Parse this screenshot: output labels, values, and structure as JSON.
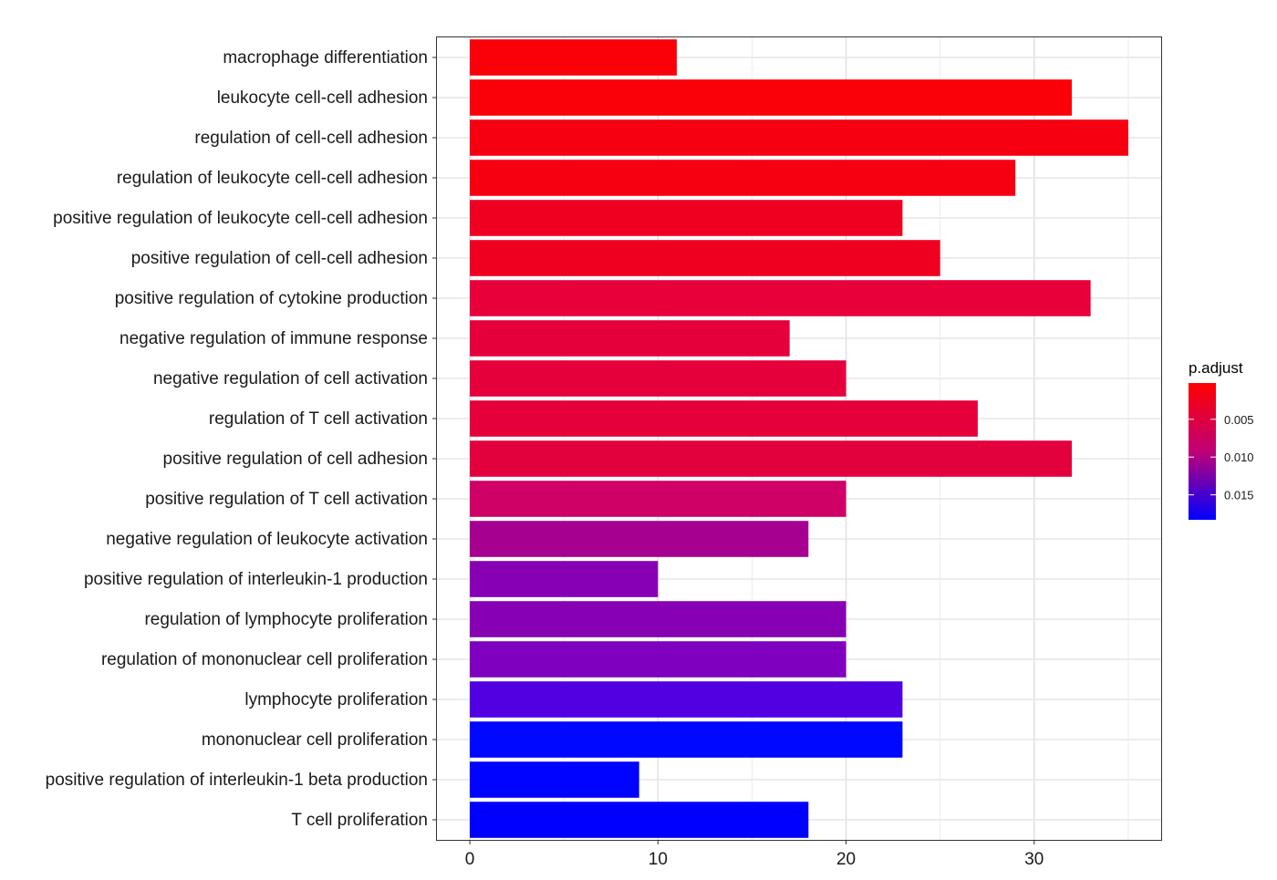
{
  "chart_data": {
    "type": "bar",
    "orientation": "horizontal",
    "title": "",
    "xlabel": "",
    "ylabel": "",
    "xlim": [
      -1.75,
      36.75
    ],
    "x_ticks": [
      0,
      10,
      20,
      30
    ],
    "grid": true,
    "legend": {
      "title": "p.adjust",
      "placement": "right",
      "ticks": [
        0.005,
        0.01,
        0.015
      ],
      "tick_labels": [
        "0.005",
        "0.010",
        "0.015"
      ],
      "range": [
        0.0002,
        0.0183
      ],
      "color_low_p": "#ff0000",
      "color_high_p": "#0000ff"
    },
    "categories": [
      "macrophage differentiation",
      "leukocyte cell-cell adhesion",
      "regulation of cell-cell adhesion",
      "regulation of leukocyte cell-cell adhesion",
      "positive regulation of leukocyte cell-cell adhesion",
      "positive regulation of cell-cell adhesion",
      "positive regulation of cytokine production",
      "negative regulation of immune response",
      "negative regulation of cell activation",
      "regulation of T cell activation",
      "positive regulation of cell adhesion",
      "positive regulation of T cell activation",
      "negative regulation of leukocyte activation",
      "positive regulation of interleukin-1 production",
      "regulation of lymphocyte proliferation",
      "regulation of mononuclear cell proliferation",
      "lymphocyte proliferation",
      "mononuclear cell proliferation",
      "positive regulation of interleukin-1 beta production",
      "T cell proliferation"
    ],
    "values": [
      11,
      32,
      35,
      29,
      23,
      25,
      33,
      17,
      20,
      27,
      32,
      20,
      18,
      10,
      20,
      20,
      23,
      23,
      9,
      18
    ],
    "colors": [
      "#fa0008",
      "#fa0008",
      "#f60011",
      "#f60011",
      "#ef0021",
      "#ef0021",
      "#e8003a",
      "#e5003b",
      "#e5003b",
      "#e5003b",
      "#e2003d",
      "#cf0066",
      "#a60090",
      "#8800b4",
      "#8800b4",
      "#7f00be",
      "#5100e2",
      "#0008ff",
      "#0003ff",
      "#0000ff"
    ]
  }
}
